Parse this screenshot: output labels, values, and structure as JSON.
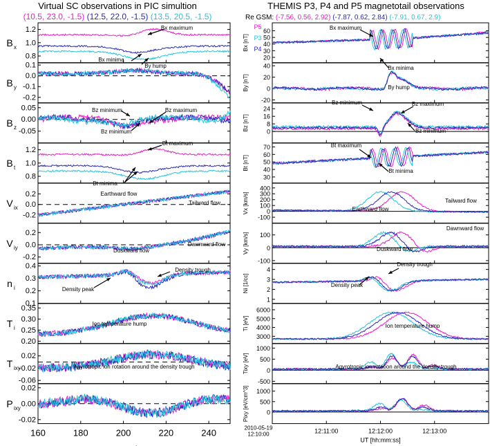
{
  "left_title": "Virtual SC observations in PIC simultion",
  "right_title": "THEMIS P3, P4 and P5 magnetotail observations",
  "left_coords": [
    {
      "text": "(10.5, 23.0, -1.5)",
      "color": "#e81ec8"
    },
    {
      "text": "(12.5, 22.0, -1.5)",
      "color": "#2a2ab4"
    },
    {
      "text": "(13.5, 20.5, -1.5)",
      "color": "#22c4de"
    }
  ],
  "right_coords_label": "Re GSM:",
  "right_coords": [
    {
      "text": "(-7.56, 0.56, 2.92)",
      "color": "#e81ec8"
    },
    {
      "text": "(-7.87, 0.62, 2.84)",
      "color": "#2a2ab4"
    },
    {
      "text": "(-7.91, 0.67, 2.9)",
      "color": "#22c4de"
    }
  ],
  "colors": {
    "magenta": "#e81ec8",
    "blue": "#2a2ab4",
    "cyan": "#22c4de"
  },
  "chart_data": [
    {
      "type": "line",
      "title": "Virtual SC observations in PIC simultion",
      "xlabel": "Ωit",
      "xlim": [
        160,
        250
      ],
      "xticks": [
        "160",
        "180",
        "200",
        "220",
        "240"
      ],
      "series_names": [
        "(10.5, 23.0, -1.5)",
        "(12.5, 22.0, -1.5)",
        "(13.5, 20.5, -1.5)"
      ],
      "panels": [
        {
          "ylabel": "Bx",
          "ylim": [
            0.7,
            1.3
          ],
          "yticks": [
            "0.8",
            "1.0",
            "1.2"
          ],
          "annotations": [
            "Bx maximum",
            "Bx minima",
            "By hump"
          ]
        },
        {
          "ylabel": "By",
          "ylim": [
            -0.25,
            0.12
          ],
          "yticks": [
            "-0.2",
            "-0.1",
            "0.0",
            "0.1"
          ],
          "dashed_zero": true
        },
        {
          "ylabel": "Bz",
          "ylim": [
            -0.1,
            0.07
          ],
          "yticks": [
            "-0.05",
            "0.00",
            "0.05"
          ],
          "dashed_zero": true,
          "annotations": [
            "Bz minimum",
            "Bz maximum",
            "Bz minimum"
          ]
        },
        {
          "ylabel": "Bt",
          "ylim": [
            0.7,
            1.3
          ],
          "yticks": [
            "0.8",
            "1.0",
            "1.2"
          ],
          "annotations": [
            "Bt maximum",
            "Bt minima"
          ]
        },
        {
          "ylabel": "Vix",
          "ylim": [
            -0.35,
            0.4
          ],
          "yticks": [
            "-0.2",
            "0.0",
            "0.2"
          ],
          "dashed_zero": true,
          "annotations": [
            "Earthward flow",
            "Tailward flow"
          ]
        },
        {
          "ylabel": "Viy",
          "ylim": [
            -0.3,
            0.35
          ],
          "yticks": [
            "-0.2",
            "0.0",
            "0.2"
          ],
          "dashed_zero": true,
          "annotations": [
            "Duskward flow",
            "Dawnward flow"
          ]
        },
        {
          "ylabel": "ni",
          "ylim": [
            0.1,
            0.42
          ],
          "yticks": [
            "0.1",
            "0.2",
            "0.3",
            "0.4"
          ],
          "annotations": [
            "Density trough",
            "Density peak"
          ]
        },
        {
          "ylabel": "Ti",
          "ylim": [
            0.19,
            0.37
          ],
          "yticks": [
            "0.20",
            "0.25",
            "0.30",
            "0.35"
          ],
          "annotations": [
            "Ion  temperature hump"
          ]
        },
        {
          "ylabel": "Tixy",
          "ylim": [
            -0.07,
            0.06
          ],
          "yticks": [
            "-0.06",
            "-0.02",
            "0.02"
          ],
          "dashed_zero": true,
          "annotations": [
            "Agyrotropic ion rotation around the density trough"
          ]
        },
        {
          "ylabel": "Pixy",
          "ylim": [
            -0.025,
            0.025
          ],
          "yticks": [
            "-0.02",
            "0.00",
            "0.02"
          ],
          "dashed_zero": true
        }
      ]
    },
    {
      "type": "line",
      "title": "THEMIS P3, P4 and P5 magnetotail observations",
      "xlabel": "UT [hh:mm:ss]",
      "x_start_label": "2010-05-19\n12:10:00",
      "xticks": [
        "12:11:00",
        "12:12:00",
        "12:13:00"
      ],
      "legend": [
        {
          "name": "P5",
          "color": "#e81ec8"
        },
        {
          "name": "P3",
          "color": "#22c4de"
        },
        {
          "name": "P4",
          "color": "#2a2ab4"
        }
      ],
      "panels": [
        {
          "ylabel": "Bx [nT]",
          "ylim": [
            12,
            72
          ],
          "yticks": [
            "20",
            "30",
            "40",
            "50",
            "60"
          ],
          "annotations": [
            "Bx maximum",
            "Bx minima",
            "By hump"
          ]
        },
        {
          "ylabel": "By [nT]",
          "ylim": [
            -25,
            45
          ],
          "yticks": [
            "-20",
            "0",
            "20",
            "40"
          ],
          "annotations": [
            "By hump"
          ]
        },
        {
          "ylabel": "Bz [nT]",
          "ylim": [
            -12,
            30
          ],
          "yticks": [
            "0",
            "8",
            "16",
            "24"
          ],
          "solid_zero": true,
          "annotations": [
            "Bz minimum",
            "Bz maximum",
            "Bz minimum"
          ]
        },
        {
          "ylabel": "Bt [nT]",
          "ylim": [
            22,
            75
          ],
          "yticks": [
            "30",
            "40",
            "50",
            "60",
            "70"
          ],
          "annotations": [
            "Bt maximum",
            "Bt minima"
          ]
        },
        {
          "ylabel": "Vx [km/s]",
          "ylim": [
            -200,
            480
          ],
          "yticks": [
            "-100",
            "0",
            "100",
            "200",
            "300",
            "400"
          ],
          "solid_zero": true,
          "annotations": [
            "Earthward flow",
            "Tailward flow"
          ]
        },
        {
          "ylabel": "Vy [km/s]",
          "ylim": [
            -120,
            190
          ],
          "yticks": [
            "-100",
            "0",
            "100"
          ],
          "solid_zero": true,
          "annotations": [
            "Duskward flow",
            "Dawnward flow"
          ]
        },
        {
          "ylabel": "Ni [1/cc]",
          "ylim": [
            0.6,
            4.6
          ],
          "yticks": [
            "1",
            "2",
            "3",
            "4"
          ],
          "annotations": [
            "Density trough",
            "Density peak"
          ]
        },
        {
          "ylabel": "Ti [eV]",
          "ylim": [
            2200,
            6700
          ],
          "yticks": [
            "3000",
            "4000",
            "5000",
            "6000"
          ],
          "annotations": [
            "Ion  temperature hump"
          ]
        },
        {
          "ylabel": "Tixy [eV]",
          "ylim": [
            -600,
            1200
          ],
          "yticks": [
            "-500",
            "0",
            "500",
            "1000"
          ],
          "solid_zero": true,
          "annotations": [
            "Agyrotropic ion rotation around the density trough"
          ]
        },
        {
          "ylabel": "Pixy [eV/cm^3]",
          "ylim": [
            -550,
            1350
          ],
          "yticks": [
            "0",
            "500",
            "1000"
          ],
          "solid_zero": true
        }
      ]
    }
  ]
}
